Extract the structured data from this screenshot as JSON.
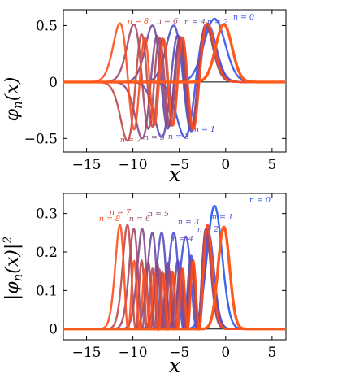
{
  "chart_data": [
    {
      "type": "line",
      "ylabel": "φn(x)",
      "xlabel": "x",
      "xlim": [
        -17.5,
        6.5
      ],
      "ylim": [
        -0.62,
        0.64
      ],
      "xticks": [
        -15,
        -10,
        -5,
        0,
        5
      ],
      "xtick_labels": [
        "−15",
        "−10",
        "−5",
        "0",
        "5"
      ],
      "yticks": [
        0.5,
        0,
        -0.5
      ],
      "ytick_labels": [
        "0.5",
        "0",
        "−0.5"
      ],
      "grid": false,
      "zero_line": true,
      "series": [
        {
          "name": "n = 0",
          "color": "#3355ee",
          "label_text": "n = 0",
          "peak_x": -1.2,
          "peak_y": 0.56
        },
        {
          "name": "n = 1",
          "color": "#3f52df",
          "label_text": "n = 1",
          "peak_x": -4.4,
          "peak_y": -0.49
        },
        {
          "name": "n = 2",
          "color": "#4b50cc",
          "label_text": "n = 2",
          "peak_x": -5.6,
          "peak_y": 0.5
        },
        {
          "name": "n = 3",
          "color": "#5b4db8",
          "label_text": "n = 3",
          "peak_x": -6.9,
          "peak_y": -0.49
        },
        {
          "name": "n = 4",
          "color": "#6f4aa0",
          "label_text": "n = 4",
          "peak_x": -7.9,
          "peak_y": 0.5
        },
        {
          "name": "n = 5",
          "color": "#874a86",
          "label_text": "n = 5",
          "peak_x": -9.0,
          "peak_y": -0.5
        },
        {
          "name": "n = 6",
          "color": "#a34a68",
          "label_text": "n = 6",
          "peak_x": -9.9,
          "peak_y": 0.51
        },
        {
          "name": "n = 7",
          "color": "#c24a48",
          "label_text": "n = 7",
          "peak_x": -10.6,
          "peak_y": -0.52
        },
        {
          "name": "n = 8",
          "color": "#ff4c1c",
          "label_text": "n = 8",
          "peak_x": -11.4,
          "peak_y": 0.52
        }
      ],
      "final_curve": {
        "color": "#ff5a1a",
        "peak_x": -0.2,
        "peak_y": 0.51
      }
    },
    {
      "type": "line",
      "ylabel": "|φn(x)|²",
      "xlabel": "x",
      "xlim": [
        -17.5,
        6.5
      ],
      "ylim": [
        -0.028,
        0.352
      ],
      "xticks": [
        -15,
        -10,
        -5,
        0,
        5
      ],
      "xtick_labels": [
        "−15",
        "−10",
        "−5",
        "0",
        "5"
      ],
      "yticks": [
        0,
        0.1,
        0.2,
        0.3
      ],
      "ytick_labels": [
        "0",
        "0.1",
        "0.2",
        "0.3"
      ],
      "grid": false,
      "zero_line": true,
      "series": [
        {
          "name": "n = 0",
          "color": "#2255ee",
          "label_text": "n = 0",
          "peak_x": -1.2,
          "peak_y": 0.32
        },
        {
          "name": "n = 1",
          "color": "#3f52df",
          "label_text": "n = 1",
          "peak_x": -4.3,
          "peak_y": 0.24
        },
        {
          "name": "n = 2",
          "color": "#4b50cc",
          "label_text": "n = 2",
          "peak_x": -5.6,
          "peak_y": 0.25
        },
        {
          "name": "n = 3",
          "color": "#5b4db8",
          "label_text": "n = 3",
          "peak_x": -6.9,
          "peak_y": 0.25
        },
        {
          "name": "n = 4",
          "color": "#6f4aa0",
          "label_text": "n = 4",
          "peak_x": -7.9,
          "peak_y": 0.25
        },
        {
          "name": "n = 5",
          "color": "#874a86",
          "label_text": "n = 5",
          "peak_x": -9.0,
          "peak_y": 0.26
        },
        {
          "name": "n = 6",
          "color": "#a34a68",
          "label_text": "n = 6",
          "peak_x": -9.9,
          "peak_y": 0.26
        },
        {
          "name": "n = 7",
          "color": "#c24a48",
          "label_text": "n = 7",
          "peak_x": -10.6,
          "peak_y": 0.27
        },
        {
          "name": "n = 8",
          "color": "#ff4c1c",
          "label_text": "n = 8",
          "peak_x": -11.4,
          "peak_y": 0.27
        }
      ],
      "final_curve": {
        "color": "#ff5a1a",
        "peak_x": -0.2,
        "peak_y": 0.265
      }
    }
  ]
}
